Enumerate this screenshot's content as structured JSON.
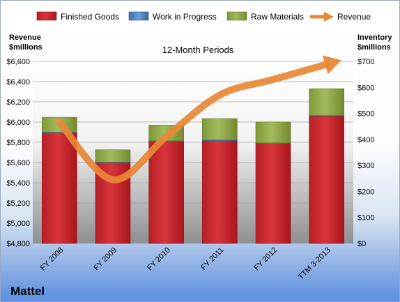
{
  "chart_data": {
    "type": "bar",
    "title": "12-Month Periods",
    "company": "Mattel",
    "categories": [
      "FY 2008",
      "FY 2009",
      "FY 2010",
      "FY 2011",
      "FY 2012",
      "TTM 3-2013"
    ],
    "series": [
      {
        "name": "Finished Goods",
        "axis": "right",
        "stack": "inventory",
        "color": "#c9292f",
        "values": [
          425,
          310,
          392,
          395,
          384,
          490
        ]
      },
      {
        "name": "Work in Progress",
        "axis": "right",
        "stack": "inventory",
        "color": "#4f81bd",
        "values": [
          3,
          3,
          3,
          3,
          3,
          3
        ]
      },
      {
        "name": "Raw Materials",
        "axis": "right",
        "stack": "inventory",
        "color": "#93aa4d",
        "values": [
          57,
          47,
          60,
          82,
          80,
          102
        ]
      },
      {
        "name": "Revenue",
        "axis": "left",
        "type": "line",
        "color": "#e88836",
        "values": [
          6000,
          5430,
          5856,
          6267,
          6421,
          6570
        ]
      }
    ],
    "y_left": {
      "label_line1": "Revenue",
      "label_line2": "$millions",
      "ylim": [
        4800,
        6600
      ],
      "ticks": [
        "$4,800",
        "$5,000",
        "$5,200",
        "$5,400",
        "$5,600",
        "$5,800",
        "$6,000",
        "$6,200",
        "$6,400",
        "$6,600"
      ]
    },
    "y_right": {
      "label_line1": "Inventory",
      "label_line2": "$millions",
      "ylim": [
        0,
        700
      ],
      "ticks": [
        "$0",
        "$100",
        "$200",
        "$300",
        "$400",
        "$500",
        "$600",
        "$700"
      ]
    },
    "legend": {
      "position": "top",
      "items": [
        "Finished Goods",
        "Work in Progress",
        "Raw Materials",
        "Revenue"
      ]
    },
    "grid": true
  }
}
